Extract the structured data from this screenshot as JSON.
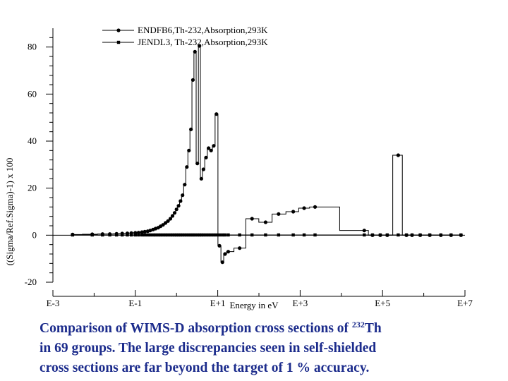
{
  "chart_data": {
    "type": "line",
    "title": "",
    "xlabel": "Energy in eV",
    "ylabel": "((Sigma/Ref.Sigma)-1) x 100",
    "x_scale": "log",
    "xlim": [
      0.001,
      10000000
    ],
    "ylim": [
      -20,
      88
    ],
    "y_ticks": [
      -20,
      0,
      20,
      40,
      60,
      80
    ],
    "y_tick_labels": [
      "-20",
      "0",
      "20",
      "40",
      "60",
      "80"
    ],
    "x_ticks": [
      0.001,
      0.1,
      10,
      1000,
      100000,
      10000000
    ],
    "x_tick_labels": [
      "E-3",
      "E-1",
      "E+1",
      "E+3",
      "E+5",
      "E+7"
    ],
    "grid": false,
    "legend": "top-left",
    "series": [
      {
        "name": "ENDFB6,Th-232,Absorption,293K",
        "marker": "circle",
        "x": [
          0.003,
          0.009,
          0.016,
          0.024,
          0.035,
          0.048,
          0.064,
          0.08,
          0.1,
          0.12,
          0.145,
          0.17,
          0.2,
          0.23,
          0.27,
          0.31,
          0.36,
          0.41,
          0.47,
          0.54,
          0.62,
          0.71,
          0.8,
          0.9,
          1.0,
          1.12,
          1.25,
          1.4,
          1.58,
          1.78,
          2.0,
          2.24,
          2.5,
          2.8,
          3.2,
          3.6,
          4.0,
          4.5,
          5.2,
          6.0,
          6.9,
          8.0,
          9.3,
          11.0,
          13.0,
          15.0,
          18.0,
          34.0,
          68.0,
          145.0,
          300.0,
          680.0,
          1250.0,
          2300.0,
          36000.0,
          57000.0,
          88000.0,
          130000.0,
          240000.0,
          380000.0,
          520000.0,
          820000.0,
          1400000.0,
          2600000.0,
          4600000.0,
          8000000.0
        ],
        "y": [
          0.3,
          0.4,
          0.5,
          0.5,
          0.6,
          0.7,
          0.8,
          0.9,
          1.0,
          1.1,
          1.3,
          1.5,
          1.7,
          2.0,
          2.4,
          2.8,
          3.2,
          3.8,
          4.4,
          5.2,
          6.0,
          7.0,
          8.2,
          9.5,
          11.0,
          12.5,
          14.5,
          17.0,
          21.5,
          29.0,
          36.0,
          45.0,
          66.0,
          78.0,
          30.5,
          80.5,
          24.0,
          28.0,
          33.0,
          37.0,
          36.0,
          38.0,
          51.5,
          -4.5,
          -11.5,
          -8.0,
          -7.0,
          -5.5,
          7.0,
          5.5,
          9.0,
          10.0,
          11.5,
          12.0,
          2.0,
          0.0,
          0.0,
          0.0,
          34.0,
          0.0,
          0.0,
          0.0,
          0.0,
          0.0,
          0.0,
          0.0
        ]
      },
      {
        "name": "JENDL3, Th-232,Absorption,293K",
        "marker": "square",
        "x": [
          0.003,
          0.009,
          0.016,
          0.024,
          0.035,
          0.048,
          0.064,
          0.08,
          0.1,
          0.12,
          0.145,
          0.17,
          0.2,
          0.23,
          0.27,
          0.31,
          0.36,
          0.41,
          0.47,
          0.54,
          0.62,
          0.71,
          0.8,
          0.9,
          1.0,
          1.12,
          1.25,
          1.4,
          1.58,
          1.78,
          2.0,
          2.24,
          2.5,
          2.8,
          3.2,
          3.6,
          4.0,
          4.5,
          5.2,
          6.0,
          6.9,
          8.0,
          9.3,
          11.0,
          13.0,
          15.0,
          18.0,
          34.0,
          68.0,
          145.0,
          300.0,
          680.0,
          1250.0,
          2300.0,
          36000.0,
          57000.0,
          88000.0,
          130000.0,
          240000.0,
          380000.0,
          520000.0,
          820000.0,
          1400000.0,
          2600000.0,
          4600000.0,
          8000000.0
        ],
        "y": [
          0.1,
          0.1,
          0.1,
          0.1,
          0.1,
          0.1,
          0.1,
          0.1,
          0.1,
          0.1,
          0.1,
          0.1,
          0.1,
          0.1,
          0.1,
          0.1,
          0.1,
          0.1,
          0.1,
          0.1,
          0.1,
          0.1,
          0.1,
          0.1,
          0.1,
          0.1,
          0.1,
          0.1,
          0.1,
          0.1,
          0.1,
          0.1,
          0.1,
          0.1,
          0.1,
          0.1,
          0.1,
          0.1,
          0.1,
          0.1,
          0.1,
          0.1,
          0.1,
          0.1,
          0.1,
          0.1,
          0.1,
          0.1,
          0.1,
          0.1,
          0.1,
          0.1,
          0.1,
          0.1,
          0.1,
          0.1,
          0.1,
          0.1,
          0.1,
          0.1,
          0.1,
          0.1,
          0.1,
          0.1,
          0.1,
          0.1
        ]
      }
    ]
  },
  "caption": {
    "line1_before": "Comparison of WIMS-D absorption cross sections of ",
    "mass_number": "232",
    "element": "Th",
    "line2": "in 69 groups. The large discrepancies seen in self-shielded",
    "line3": "cross sections are far beyond the target of 1 % accuracy."
  }
}
